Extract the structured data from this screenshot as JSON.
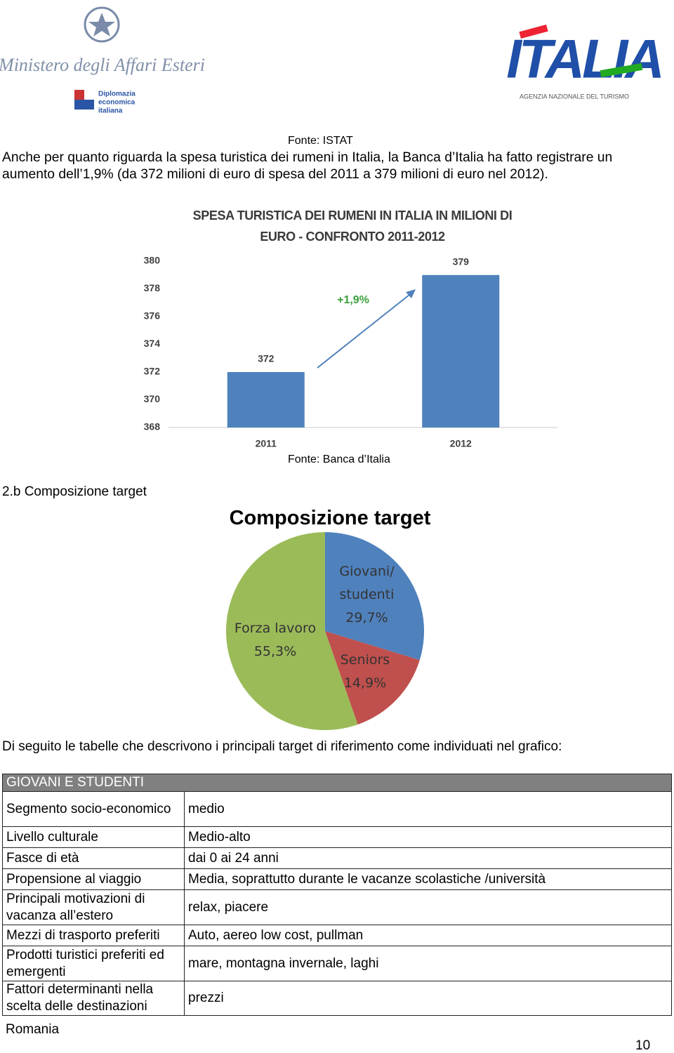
{
  "header": {
    "ministry": "Ministero degli Affari Esteri",
    "ministry_sub": [
      "Diplomazia",
      "economica",
      "italiana"
    ],
    "italia_logo": "ITALIA",
    "italia_sub": "AGENZIA NAZIONALE DEL TURISMO"
  },
  "source_istat": "Fonte: ISTAT",
  "intro": "Anche per quanto riguarda la spesa turistica dei rumeni in Italia, la Banca d’Italia ha fatto registrare un aumento dell’1,9% (da 372 milioni di euro di spesa del 2011 a 379 milioni di euro nel 2012).",
  "chart_data": [
    {
      "type": "bar",
      "title": "SPESA TURISTICA DEI RUMENI IN ITALIA IN MILIONI DI EURO - CONFRONTO 2011-2012",
      "categories": [
        "2011",
        "2012"
      ],
      "values": [
        372,
        379
      ],
      "color": "#4f81bd",
      "ylim": [
        368,
        380
      ],
      "yticks": [
        368,
        370,
        372,
        374,
        376,
        378,
        380
      ],
      "annotation": "+1,9%"
    },
    {
      "type": "pie",
      "title": "Composizione target",
      "categories": [
        "Giovani/ studenti",
        "Seniors",
        "Forza lavoro"
      ],
      "values": [
        29.7,
        14.9,
        55.3
      ],
      "value_labels": [
        "29,7%",
        "14,9%",
        "55,3%"
      ],
      "colors": [
        "#4f81bd",
        "#c0504d",
        "#9bbb59"
      ]
    }
  ],
  "source_banca": "Fonte: Banca d’Italia",
  "section_heading": "2.b Composizione target",
  "table_intro": "Di seguito le tabelle che descrivono i principali target di riferimento come individuati nel grafico:",
  "table": {
    "title": "GIOVANI E STUDENTI",
    "rows": [
      [
        "Segmento socio-economico",
        "medio"
      ],
      [
        "Livello culturale",
        "Medio-alto"
      ],
      [
        "Fasce di età",
        "dai 0 ai 24 anni"
      ],
      [
        "Propensione al viaggio",
        "Media, soprattutto durante le vacanze scolastiche /università"
      ],
      [
        "Principali motivazioni di vacanza all’estero",
        "relax, piacere"
      ],
      [
        "Mezzi di trasporto preferiti",
        "Auto, aereo low cost, pullman"
      ],
      [
        "Prodotti turistici preferiti ed emergenti",
        "mare, montagna invernale, laghi"
      ],
      [
        "Fattori determinanti nella scelta delle destinazioni",
        "prezzi"
      ]
    ]
  },
  "footer_note": "Romania",
  "page_number": "10"
}
